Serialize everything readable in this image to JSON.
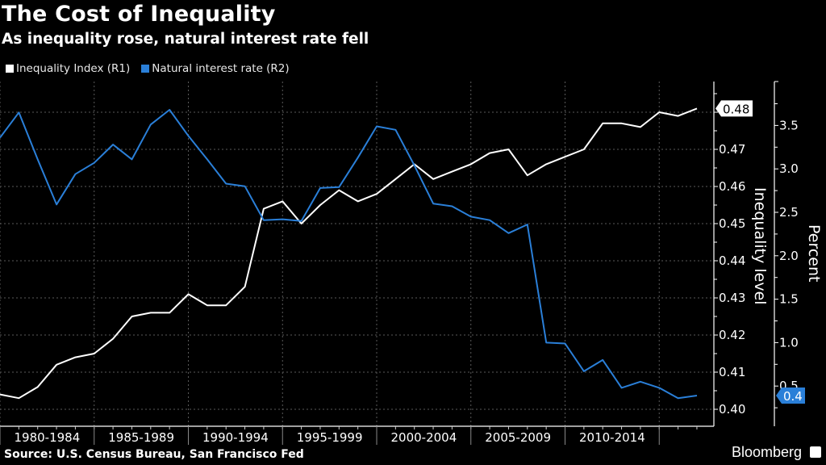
{
  "header": {
    "title": "The Cost of Inequality",
    "subtitle": "As inequality rose, natural interest rate fell"
  },
  "footer": {
    "source": "Source: U.S. Census Bureau, San Francisco Fed",
    "brand": "Bloomberg",
    "brand_icon": "bloomberg-chart-icon"
  },
  "chart_data": {
    "type": "line",
    "title": "The Cost of Inequality",
    "subtitle": "As inequality rose, natural interest rate fell",
    "x": [
      1980,
      1981,
      1982,
      1983,
      1984,
      1985,
      1986,
      1987,
      1988,
      1989,
      1990,
      1991,
      1992,
      1993,
      1994,
      1995,
      1996,
      1997,
      1998,
      1999,
      2000,
      2001,
      2002,
      2003,
      2004,
      2005,
      2006,
      2007,
      2008,
      2009,
      2010,
      2011,
      2012,
      2013,
      2014,
      2015,
      2016,
      2017
    ],
    "categories": [
      "1980-1984",
      "1985-1989",
      "1990-1994",
      "1995-1999",
      "2000-2004",
      "2005-2009",
      "2010-2014"
    ],
    "series": [
      {
        "name": "Inequality Index (R1)",
        "axis": "R1",
        "color": "#ffffff",
        "values": [
          0.404,
          0.403,
          0.406,
          0.412,
          0.414,
          0.415,
          0.419,
          0.425,
          0.426,
          0.426,
          0.431,
          0.428,
          0.428,
          0.433,
          0.454,
          0.456,
          0.45,
          0.455,
          0.459,
          0.456,
          0.458,
          0.462,
          0.466,
          0.462,
          0.464,
          0.466,
          0.469,
          0.47,
          0.463,
          0.466,
          0.468,
          0.47,
          0.477,
          0.477,
          0.476,
          0.48,
          0.479,
          0.481
        ],
        "last_value_label": "0.48"
      },
      {
        "name": "Natural interest rate (R2)",
        "axis": "R2",
        "color": "#2a7fd8",
        "values": [
          3.36,
          3.65,
          3.11,
          2.59,
          2.94,
          3.07,
          3.28,
          3.11,
          3.51,
          3.68,
          3.38,
          3.11,
          2.83,
          2.8,
          2.41,
          2.42,
          2.4,
          2.78,
          2.79,
          3.13,
          3.49,
          3.45,
          3.04,
          2.6,
          2.57,
          2.45,
          2.41,
          2.26,
          2.36,
          1.0,
          0.99,
          0.67,
          0.8,
          0.48,
          0.55,
          0.48,
          0.36,
          0.39
        ],
        "last_value_label": "0.4"
      }
    ],
    "axes": {
      "R1": {
        "label": "Inequality level",
        "range": [
          0.397,
          0.4885
        ],
        "ticks": [
          0.4,
          0.41,
          0.42,
          0.43,
          0.44,
          0.45,
          0.46,
          0.47,
          0.48
        ],
        "tick_labels": [
          "0.40",
          "0.41",
          "0.42",
          "0.43",
          "0.44",
          "0.45",
          "0.46",
          "0.47",
          "0.48"
        ],
        "position": "right"
      },
      "R2": {
        "label": "Percent",
        "range": [
          0.28,
          4.0
        ],
        "ticks": [
          0.5,
          1.0,
          1.5,
          2.0,
          2.5,
          3.0,
          3.5
        ],
        "tick_labels": [
          "0.5",
          "1.0",
          "1.5",
          "2.0",
          "2.5",
          "3.0",
          "3.5"
        ],
        "position": "right"
      }
    },
    "grid": true,
    "legend": "top-left"
  }
}
